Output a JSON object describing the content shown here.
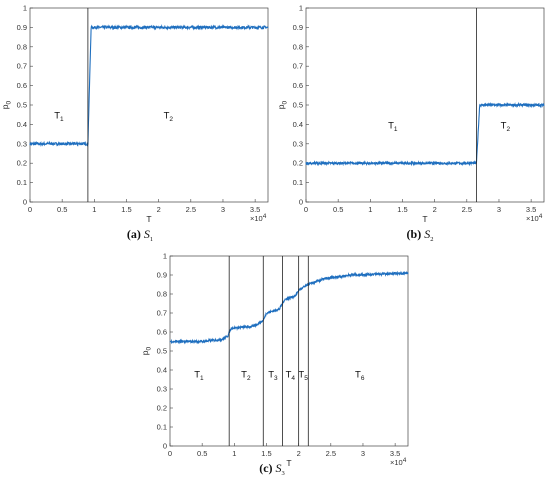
{
  "chart_data": [
    {
      "type": "line",
      "id": "a",
      "caption_label": "(a)",
      "caption_symbol": "S",
      "caption_sub": "1",
      "xlabel": "T",
      "ylabel_main": "p",
      "ylabel_sub": "0",
      "x_exponent_base": "×10",
      "x_exponent_power": "4",
      "xlim": [
        0,
        3.7
      ],
      "ylim": [
        0,
        1
      ],
      "xticks": [
        "0",
        "0.5",
        "1",
        "1.5",
        "2",
        "2.5",
        "3",
        "3.5"
      ],
      "yticks": [
        "0",
        "0.1",
        "0.2",
        "0.3",
        "0.4",
        "0.5",
        "0.6",
        "0.7",
        "0.8",
        "0.9",
        "1"
      ],
      "change_points": [
        0.9
      ],
      "regions": [
        {
          "main": "T",
          "sub": "1",
          "x": 0.45,
          "y": 0.43
        },
        {
          "main": "T",
          "sub": "2",
          "x": 2.15,
          "y": 0.43
        }
      ],
      "series": [
        {
          "color": "#1f6fbf",
          "noise": 0.007,
          "segments": [
            [
              0,
              0.9,
              0.3
            ],
            [
              0.95,
              3.7,
              0.9
            ]
          ],
          "transition": [
            [
              0.9,
              0.3
            ],
            [
              0.95,
              0.9
            ]
          ]
        }
      ]
    },
    {
      "type": "line",
      "id": "b",
      "caption_label": "(b)",
      "caption_symbol": "S",
      "caption_sub": "2",
      "xlabel": "T",
      "ylabel_main": "p",
      "ylabel_sub": "0",
      "x_exponent_base": "×10",
      "x_exponent_power": "4",
      "xlim": [
        0,
        3.7
      ],
      "ylim": [
        0,
        1
      ],
      "xticks": [
        "0",
        "0.5",
        "1",
        "1.5",
        "2",
        "2.5",
        "3",
        "3.5"
      ],
      "yticks": [
        "0",
        "0.1",
        "0.2",
        "0.3",
        "0.4",
        "0.5",
        "0.6",
        "0.7",
        "0.8",
        "0.9",
        "1"
      ],
      "change_points": [
        2.65
      ],
      "regions": [
        {
          "main": "T",
          "sub": "1",
          "x": 1.35,
          "y": 0.38
        },
        {
          "main": "T",
          "sub": "2",
          "x": 3.1,
          "y": 0.38
        }
      ],
      "series": [
        {
          "color": "#1f6fbf",
          "noise": 0.006,
          "segments": [
            [
              0,
              2.65,
              0.2
            ],
            [
              2.7,
              3.7,
              0.5
            ]
          ],
          "transition": [
            [
              2.65,
              0.2
            ],
            [
              2.7,
              0.5
            ]
          ]
        }
      ]
    },
    {
      "type": "line",
      "id": "c",
      "caption_label": "(c)",
      "caption_symbol": "S",
      "caption_sub": "3",
      "xlabel": "T",
      "ylabel_main": "p",
      "ylabel_sub": "0",
      "x_exponent_base": "×10",
      "x_exponent_power": "4",
      "xlim": [
        0,
        3.7
      ],
      "ylim": [
        0,
        1
      ],
      "xticks": [
        "0",
        "0.5",
        "1",
        "1.5",
        "2",
        "2.5",
        "3",
        "3.5"
      ],
      "yticks": [
        "0",
        "0.1",
        "0.2",
        "0.3",
        "0.4",
        "0.5",
        "0.6",
        "0.7",
        "0.8",
        "0.9",
        "1"
      ],
      "change_points": [
        0.92,
        1.45,
        1.75,
        2.0,
        2.15
      ],
      "regions": [
        {
          "main": "T",
          "sub": "1",
          "x": 0.45,
          "y": 0.36
        },
        {
          "main": "T",
          "sub": "2",
          "x": 1.18,
          "y": 0.36
        },
        {
          "main": "T",
          "sub": "3",
          "x": 1.6,
          "y": 0.36
        },
        {
          "main": "T",
          "sub": "4",
          "x": 1.87,
          "y": 0.36
        },
        {
          "main": "T",
          "sub": "5",
          "x": 2.07,
          "y": 0.36
        },
        {
          "main": "T",
          "sub": "6",
          "x": 2.95,
          "y": 0.36
        }
      ],
      "series": [
        {
          "color": "#1f6fbf",
          "noise": 0.006,
          "curve": [
            [
              0,
              0.55
            ],
            [
              0.5,
              0.55
            ],
            [
              0.8,
              0.56
            ],
            [
              0.9,
              0.58
            ],
            [
              0.95,
              0.62
            ],
            [
              1.3,
              0.63
            ],
            [
              1.45,
              0.66
            ],
            [
              1.5,
              0.7
            ],
            [
              1.7,
              0.72
            ],
            [
              1.78,
              0.77
            ],
            [
              1.95,
              0.79
            ],
            [
              2.0,
              0.82
            ],
            [
              2.15,
              0.85
            ],
            [
              2.4,
              0.88
            ],
            [
              2.8,
              0.9
            ],
            [
              3.7,
              0.91
            ]
          ]
        }
      ]
    }
  ]
}
